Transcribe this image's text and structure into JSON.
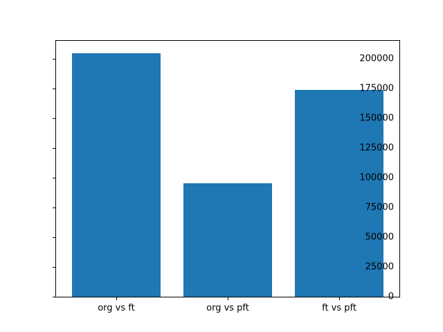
{
  "chart_data": {
    "type": "bar",
    "categories": [
      "org vs ft",
      "org vs pft",
      "ft vs pft"
    ],
    "values": [
      204800,
      95400,
      173500
    ],
    "title": "",
    "xlabel": "",
    "ylabel": "",
    "ylim": [
      0,
      215000
    ],
    "yticks": [
      0,
      25000,
      50000,
      75000,
      100000,
      125000,
      150000,
      175000,
      200000
    ],
    "bar_color": "#1f77b4",
    "background_color": "#ffffff",
    "spine_color": "#000000",
    "grid": false,
    "legend_position": "none"
  }
}
